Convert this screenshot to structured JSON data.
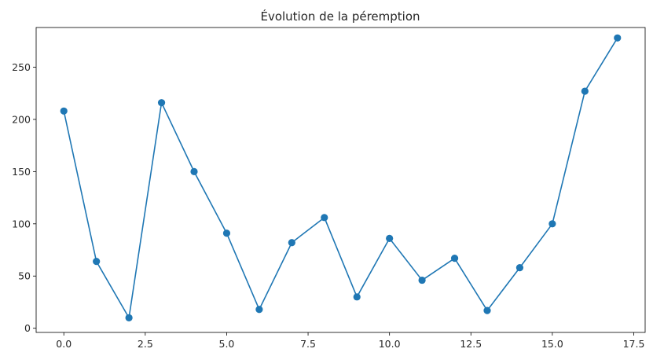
{
  "chart_data": {
    "type": "line",
    "title": "Évolution de la péremption",
    "xlabel": "",
    "ylabel": "",
    "xlim": [
      -0.85,
      17.85
    ],
    "ylim": [
      -4,
      288
    ],
    "grid": false,
    "legend": "none",
    "marker": "circle",
    "line_color": "#1f77b4",
    "xticks": [
      0.0,
      2.5,
      5.0,
      7.5,
      10.0,
      12.5,
      15.0,
      17.5
    ],
    "xtick_labels": [
      "0.0",
      "2.5",
      "5.0",
      "7.5",
      "10.0",
      "12.5",
      "15.0",
      "17.5"
    ],
    "yticks": [
      0,
      50,
      100,
      150,
      200,
      250
    ],
    "ytick_labels": [
      "0",
      "50",
      "100",
      "150",
      "200",
      "250"
    ],
    "series": [
      {
        "x": [
          0,
          1,
          2,
          3,
          4,
          5,
          6,
          7,
          8,
          9,
          10,
          11,
          12,
          13,
          14,
          15,
          16,
          17
        ],
        "y": [
          208,
          64,
          10,
          216,
          150,
          91,
          18,
          82,
          106,
          30,
          86,
          46,
          67,
          17,
          58,
          100,
          227,
          278
        ]
      }
    ]
  }
}
